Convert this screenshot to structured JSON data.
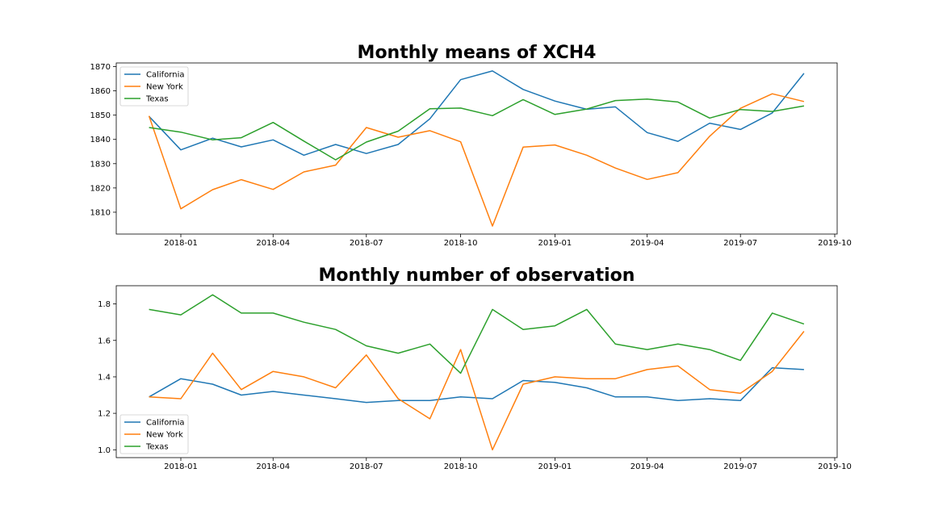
{
  "colors": {
    "California": "#1f77b4",
    "New York": "#ff7f0e",
    "Texas": "#2ca02c"
  },
  "chart_data": [
    {
      "type": "line",
      "title": "Monthly means of XCH4",
      "x": [
        "2017-12",
        "2018-01",
        "2018-02",
        "2018-03",
        "2018-04",
        "2018-05",
        "2018-06",
        "2018-07",
        "2018-08",
        "2018-09",
        "2018-10",
        "2018-11",
        "2018-12",
        "2019-01",
        "2019-02",
        "2019-03",
        "2019-04",
        "2019-05",
        "2019-06",
        "2019-07",
        "2019-08",
        "2019-09"
      ],
      "x_ticks": [
        "2018-01",
        "2018-04",
        "2018-07",
        "2018-10",
        "2019-01",
        "2019-04",
        "2019-07",
        "2019-10"
      ],
      "y_ticks": [
        1810,
        1820,
        1830,
        1840,
        1850,
        1860,
        1870
      ],
      "ylim": [
        1801,
        1871.5
      ],
      "legend_position": "upper-left",
      "series": [
        {
          "name": "California",
          "values": [
            1849.5,
            1835.7,
            1840.5,
            1836.9,
            1839.8,
            1833.5,
            1837.9,
            1834.2,
            1837.9,
            1848.5,
            1864.6,
            1868.2,
            1860.6,
            1855.8,
            1852.4,
            1853.4,
            1842.8,
            1839.2,
            1846.7,
            1844.1,
            1850.9,
            1867.2
          ]
        },
        {
          "name": "New York",
          "values": [
            1849.7,
            1811.4,
            1819.3,
            1823.4,
            1819.4,
            1826.6,
            1829.4,
            1844.9,
            1840.9,
            1843.6,
            1839.0,
            1804.3,
            1836.8,
            1837.7,
            1833.5,
            1828.2,
            1823.5,
            1826.3,
            1841.3,
            1852.8,
            1858.8,
            1855.6
          ]
        },
        {
          "name": "Texas",
          "values": [
            1844.9,
            1843.0,
            1839.8,
            1840.7,
            1847.0,
            1839.3,
            1831.6,
            1838.9,
            1843.4,
            1852.6,
            1852.9,
            1849.8,
            1856.4,
            1850.3,
            1852.5,
            1856.0,
            1856.6,
            1855.4,
            1848.8,
            1852.3,
            1851.5,
            1853.8
          ]
        }
      ]
    },
    {
      "type": "line",
      "title": "Monthly number of observation",
      "x": [
        "2017-12",
        "2018-01",
        "2018-02",
        "2018-03",
        "2018-04",
        "2018-05",
        "2018-06",
        "2018-07",
        "2018-08",
        "2018-09",
        "2018-10",
        "2018-11",
        "2018-12",
        "2019-01",
        "2019-02",
        "2019-03",
        "2019-04",
        "2019-05",
        "2019-06",
        "2019-07",
        "2019-08",
        "2019-09"
      ],
      "x_ticks": [
        "2018-01",
        "2018-04",
        "2018-07",
        "2018-10",
        "2019-01",
        "2019-04",
        "2019-07",
        "2019-10"
      ],
      "y_ticks": [
        "1.0",
        "1.2",
        "1.4",
        "1.6",
        "1.8"
      ],
      "ylim": [
        0.957,
        1.9
      ],
      "legend_position": "lower-left",
      "series": [
        {
          "name": "California",
          "values": [
            1.29,
            1.39,
            1.36,
            1.3,
            1.32,
            1.3,
            1.28,
            1.26,
            1.27,
            1.27,
            1.29,
            1.28,
            1.38,
            1.37,
            1.34,
            1.29,
            1.29,
            1.27,
            1.28,
            1.27,
            1.45,
            1.44
          ]
        },
        {
          "name": "New York",
          "values": [
            1.29,
            1.28,
            1.53,
            1.33,
            1.43,
            1.4,
            1.34,
            1.52,
            1.28,
            1.17,
            1.55,
            1.0,
            1.36,
            1.4,
            1.39,
            1.39,
            1.44,
            1.46,
            1.33,
            1.31,
            1.43,
            1.65
          ]
        },
        {
          "name": "Texas",
          "values": [
            1.77,
            1.74,
            1.85,
            1.75,
            1.75,
            1.7,
            1.66,
            1.57,
            1.53,
            1.58,
            1.42,
            1.77,
            1.66,
            1.68,
            1.77,
            1.58,
            1.55,
            1.58,
            1.55,
            1.49,
            1.75,
            1.69
          ]
        }
      ]
    }
  ]
}
